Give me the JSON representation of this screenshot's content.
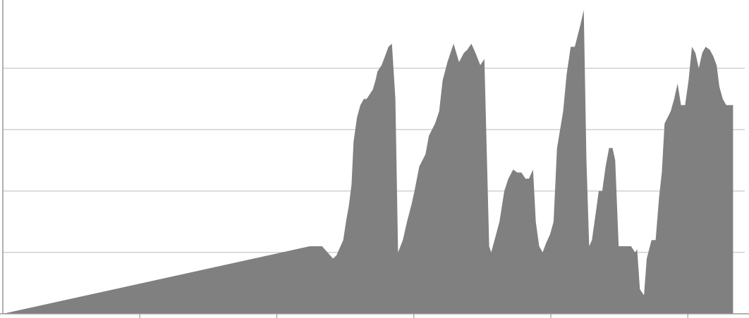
{
  "chart_data": {
    "type": "area",
    "title": "",
    "xlabel": "",
    "ylabel": "",
    "xlim": [
      0,
      1080
    ],
    "ylim": [
      0,
      5
    ],
    "grid": true,
    "legend": "none",
    "xticks": [
      200,
      400,
      600,
      800,
      1000
    ],
    "yticks": [
      1,
      2,
      3,
      4
    ],
    "colors": {
      "fill": "#808080",
      "grid": "#c8c8c8",
      "axis": "#999999"
    },
    "series": [
      {
        "x": [
          0,
          448,
          466,
          482,
          487,
          493,
          497,
          501,
          505,
          509,
          512,
          517,
          522,
          527,
          531,
          540,
          544,
          547,
          553,
          558,
          563,
          568,
          573,
          577,
          584,
          590,
          597,
          601,
          608,
          617,
          622,
          631,
          637,
          642,
          649,
          658,
          666,
          673,
          678,
          684,
          690,
          697,
          703,
          710,
          713,
          725,
          732,
          738,
          745,
          751,
          757,
          763,
          768,
          774,
          778,
          783,
          788,
          793,
          799,
          804,
          809,
          818,
          823,
          829,
          835,
          843,
          848,
          852,
          856,
          860,
          865,
          870,
          875,
          880,
          885,
          890,
          894,
          899,
          908,
          917,
          923,
          926,
          930,
          936,
          940,
          947,
          953,
          958,
          962,
          966,
          975,
          980,
          985,
          990,
          996,
          1001,
          1006,
          1011,
          1016,
          1021,
          1026,
          1032,
          1037,
          1042,
          1046,
          1051,
          1056,
          1061,
          1066
        ],
        "values": [
          0,
          1.1,
          1.1,
          0.9,
          0.95,
          1.1,
          1.2,
          1.5,
          1.75,
          2.1,
          2.8,
          3.2,
          3.4,
          3.5,
          3.5,
          3.65,
          3.8,
          3.95,
          4.05,
          4.2,
          4.35,
          4.4,
          3.5,
          1.0,
          1.2,
          1.5,
          1.8,
          2.0,
          2.4,
          2.6,
          2.9,
          3.1,
          3.3,
          3.8,
          4.1,
          4.4,
          4.1,
          4.25,
          4.3,
          4.4,
          4.25,
          4.05,
          4.15,
          1.1,
          1.0,
          1.5,
          2.0,
          2.2,
          2.35,
          2.3,
          2.3,
          2.2,
          2.2,
          2.35,
          1.5,
          1.1,
          1.0,
          1.15,
          1.3,
          1.5,
          2.7,
          3.3,
          3.9,
          4.35,
          4.35,
          4.7,
          4.95,
          2.5,
          1.1,
          1.2,
          1.6,
          2.0,
          2.0,
          2.4,
          2.7,
          2.7,
          2.5,
          1.1,
          1.1,
          1.1,
          1.0,
          1.05,
          0.4,
          0.3,
          0.9,
          1.2,
          1.2,
          1.9,
          2.3,
          3.1,
          3.3,
          3.5,
          3.75,
          3.4,
          3.4,
          3.8,
          4.35,
          4.25,
          4.0,
          4.25,
          4.35,
          4.3,
          4.2,
          4.05,
          3.7,
          3.5,
          3.4,
          3.4,
          3.4
        ]
      }
    ]
  }
}
